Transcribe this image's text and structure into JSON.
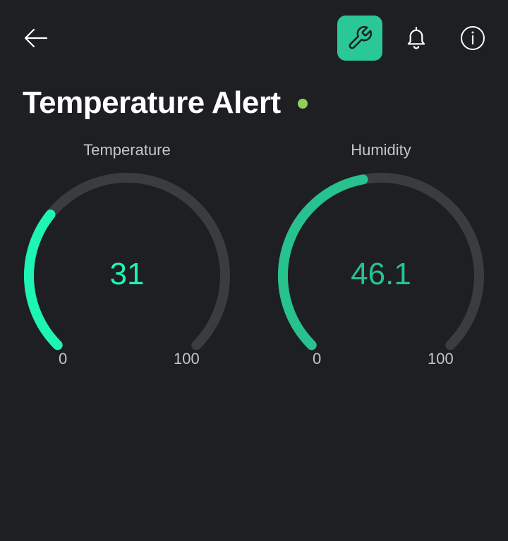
{
  "header": {
    "back_icon": "arrow-left-icon",
    "settings_icon": "wrench-icon",
    "notifications_icon": "bell-icon",
    "info_icon": "info-icon"
  },
  "page": {
    "title": "Temperature Alert",
    "status": "online"
  },
  "gauges": [
    {
      "label": "Temperature",
      "value": "31",
      "min": "0",
      "max": "100",
      "fraction": 0.31,
      "color": "#1ef4b4"
    },
    {
      "label": "Humidity",
      "value": "46.1",
      "min": "0",
      "max": "100",
      "fraction": 0.461,
      "color": "#27c28d"
    }
  ],
  "colors": {
    "background": "#1e1f22",
    "accent": "#29c894",
    "track": "#3b3c40",
    "status_dot": "#8fd05c",
    "muted_text": "#c4c6cb"
  }
}
